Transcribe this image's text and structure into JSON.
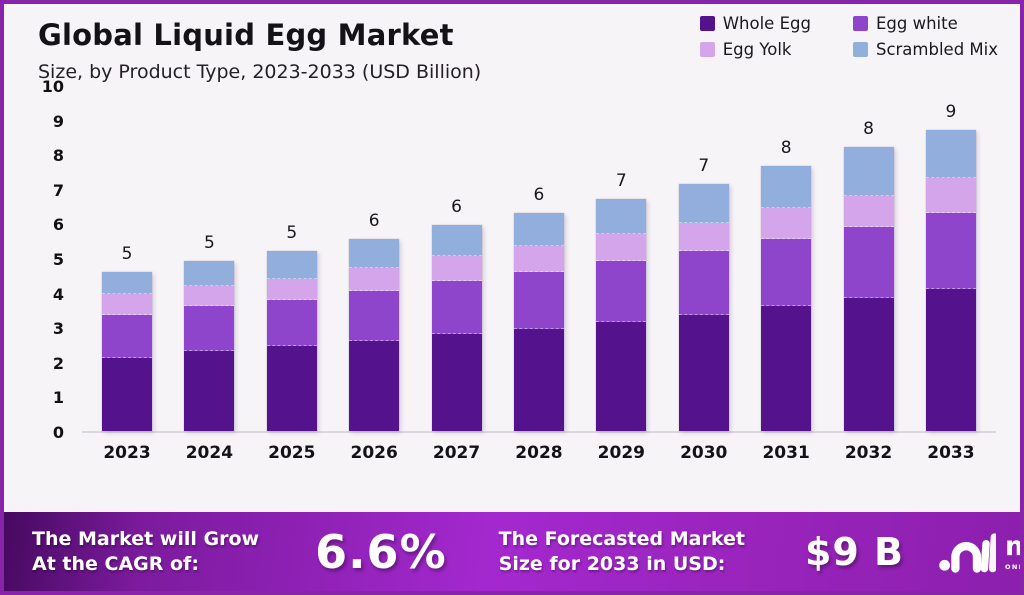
{
  "header": {
    "title": "Global Liquid Egg Market",
    "subtitle": "Size, by Product Type, 2023-2033 (USD Billion)"
  },
  "chart_data": {
    "type": "bar",
    "stacked": true,
    "title": "Global Liquid Egg Market Size, by Product Type, 2023-2033 (USD Billion)",
    "categories": [
      "2023",
      "2024",
      "2025",
      "2026",
      "2027",
      "2028",
      "2029",
      "2030",
      "2031",
      "2032",
      "2033"
    ],
    "series": [
      {
        "name": "Whole Egg",
        "color": "#54138c",
        "values": [
          2.1,
          2.3,
          2.45,
          2.6,
          2.8,
          2.95,
          3.15,
          3.35,
          3.6,
          3.85,
          4.1
        ]
      },
      {
        "name": "Egg white",
        "color": "#8e44cb",
        "values": [
          1.25,
          1.3,
          1.35,
          1.45,
          1.55,
          1.65,
          1.75,
          1.85,
          1.95,
          2.05,
          2.2
        ]
      },
      {
        "name": "Egg Yolk",
        "color": "#d4a5ea",
        "values": [
          0.6,
          0.6,
          0.6,
          0.65,
          0.7,
          0.75,
          0.8,
          0.8,
          0.9,
          0.9,
          1.0
        ]
      },
      {
        "name": "Scrambled Mix",
        "color": "#92aedc",
        "values": [
          0.65,
          0.7,
          0.8,
          0.85,
          0.9,
          0.95,
          1.0,
          1.15,
          1.2,
          1.4,
          1.4
        ]
      }
    ],
    "total_labels": [
      "5",
      "5",
      "5",
      "6",
      "6",
      "6",
      "7",
      "7",
      "8",
      "8",
      "9"
    ],
    "ylim": [
      0,
      10
    ],
    "yticks": [
      "0",
      "1",
      "2",
      "3",
      "4",
      "5",
      "6",
      "7",
      "8",
      "9",
      "10"
    ],
    "grid": false,
    "legend_position": "top-right"
  },
  "footer": {
    "cagr_label_line1": "The Market will Grow",
    "cagr_label_line2": "At the CAGR of:",
    "cagr_value": "6.6%",
    "forecast_label_line1": "The Forecasted Market",
    "forecast_label_line2": "Size for 2033 in USD:",
    "forecast_value": "$9 B",
    "logo_text": "market.us",
    "logo_tagline": "ONE STOP SHOP FOR THE REPORTS"
  },
  "colors": {
    "frame_border": "#8824a9",
    "background": "#f7f4f8",
    "footer_gradient_start": "#46095f",
    "footer_gradient_mid": "#a428cf",
    "footer_gradient_end": "#8c1fae",
    "text_dark": "#141217",
    "text_white": "#ffffff"
  }
}
